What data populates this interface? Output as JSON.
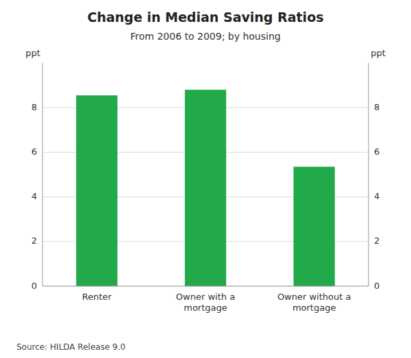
{
  "chart_data": {
    "type": "bar",
    "title": "Change in Median Saving Ratios",
    "subtitle": "From 2006 to 2009; by housing",
    "categories": [
      "Renter",
      "Owner with a\nmortgage",
      "Owner without a\nmortgage"
    ],
    "values": [
      8.55,
      8.8,
      5.35
    ],
    "color": "#22aa4a",
    "ylim": [
      0,
      10
    ],
    "yticks": [
      0,
      2,
      4,
      6,
      8
    ],
    "ylabel": "ppt",
    "y2lim": [
      0,
      10
    ],
    "y2ticks": [
      0,
      2,
      4,
      6,
      8
    ],
    "y2label": "ppt",
    "source": "Source: HILDA Release 9.0",
    "grid": true
  }
}
